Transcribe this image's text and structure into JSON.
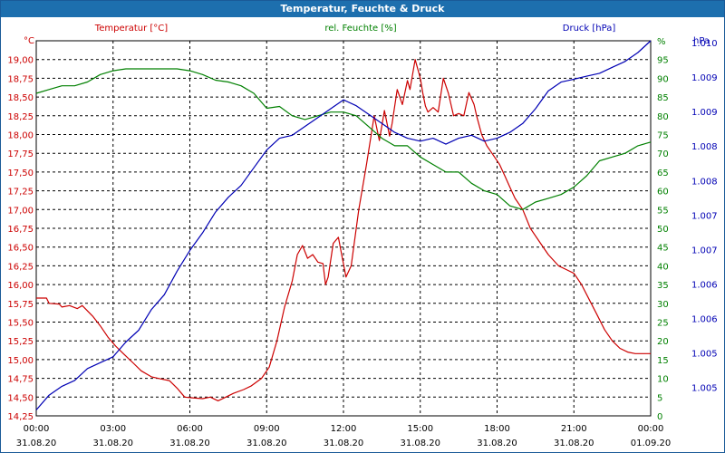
{
  "window": {
    "title": "Temperatur, Feuchte & Druck"
  },
  "colors": {
    "temperature": "#cc0000",
    "humidity": "#008000",
    "pressure": "#0000b4",
    "titlebar": "#1d6fae"
  },
  "chart_data": {
    "type": "line",
    "title": "Temperatur, Feuchte & Druck",
    "grid": true,
    "x_hours": [
      0,
      3,
      6,
      9,
      12,
      15,
      18,
      21,
      24
    ],
    "x_ticks": [
      {
        "time": "00:00",
        "date": "31.08.20"
      },
      {
        "time": "03:00",
        "date": "31.08.20"
      },
      {
        "time": "06:00",
        "date": "31.08.20"
      },
      {
        "time": "09:00",
        "date": "31.08.20"
      },
      {
        "time": "12:00",
        "date": "31.08.20"
      },
      {
        "time": "15:00",
        "date": "31.08.20"
      },
      {
        "time": "18:00",
        "date": "31.08.20"
      },
      {
        "time": "21:00",
        "date": "31.08.20"
      },
      {
        "time": "00:00",
        "date": "01.09.20"
      }
    ],
    "axes": {
      "left": {
        "unit": "°C",
        "legend": "Temperatur [°C]",
        "range": [
          14.25,
          19.25
        ],
        "ticks": [
          "14,25",
          "14,50",
          "14,75",
          "15,00",
          "15,25",
          "15,50",
          "15,75",
          "16,00",
          "16,25",
          "16,50",
          "16,75",
          "17,00",
          "17,25",
          "17,50",
          "17,75",
          "18,00",
          "18,25",
          "18,50",
          "18,75",
          "19,00"
        ]
      },
      "right1": {
        "unit": "%",
        "legend": "rel. Feuchte [%]",
        "range": [
          0,
          100
        ],
        "ticks": [
          "0",
          "5",
          "10",
          "15",
          "20",
          "25",
          "30",
          "35",
          "40",
          "45",
          "50",
          "55",
          "60",
          "65",
          "70",
          "75",
          "80",
          "85",
          "90",
          "95",
          "%"
        ]
      },
      "right2": {
        "unit": "hPa",
        "legend": "Druck [hPa]",
        "range": [
          1004.5,
          1010.85
        ],
        "ticks": [
          "1.005",
          "1.005",
          "1.006",
          "1.006",
          "1.007",
          "1.007",
          "1.008",
          "1.008",
          "1.009",
          "1.009",
          "1.010"
        ]
      }
    },
    "series": [
      {
        "name": "Temperatur",
        "axis": "left",
        "color": "#cc0000",
        "x": [
          0,
          0.4,
          0.5,
          0.9,
          1,
          1.3,
          1.6,
          1.8,
          2.2,
          2.5,
          2.8,
          3.1,
          3.4,
          3.8,
          4.1,
          4.5,
          4.9,
          5.2,
          5.5,
          5.8,
          6.1,
          6.5,
          6.8,
          7.1,
          7.4,
          7.7,
          8.1,
          8.4,
          8.8,
          9.1,
          9.4,
          9.7,
          10.0,
          10.2,
          10.4,
          10.6,
          10.8,
          11.0,
          11.2,
          11.3,
          11.4,
          11.6,
          11.8,
          11.9,
          12.1,
          12.3,
          12.6,
          12.9,
          13.2,
          13.4,
          13.6,
          13.8,
          13.9,
          14.1,
          14.3,
          14.5,
          14.6,
          14.8,
          15.0,
          15.1,
          15.2,
          15.3,
          15.5,
          15.7,
          15.9,
          16.1,
          16.3,
          16.5,
          16.7,
          16.9,
          17.1,
          17.2,
          17.4,
          17.6,
          17.8,
          18.1,
          18.3,
          18.5,
          18.7,
          19.0,
          19.3,
          19.7,
          20.0,
          20.4,
          20.7,
          21.0,
          21.3,
          21.6,
          21.9,
          22.2,
          22.5,
          22.8,
          23.1,
          23.4,
          23.7,
          24.0
        ],
        "y": [
          15.82,
          15.82,
          15.75,
          15.74,
          15.7,
          15.72,
          15.68,
          15.72,
          15.58,
          15.45,
          15.3,
          15.18,
          15.08,
          14.95,
          14.85,
          14.77,
          14.74,
          14.72,
          14.62,
          14.5,
          14.49,
          14.48,
          14.5,
          14.45,
          14.5,
          14.55,
          14.6,
          14.65,
          14.75,
          14.9,
          15.25,
          15.7,
          16.05,
          16.4,
          16.52,
          16.35,
          16.4,
          16.3,
          16.28,
          16.0,
          16.1,
          16.55,
          16.63,
          16.45,
          16.1,
          16.25,
          17.0,
          17.6,
          18.25,
          17.92,
          18.32,
          17.98,
          18.15,
          18.6,
          18.4,
          18.72,
          18.6,
          19.0,
          18.75,
          18.55,
          18.38,
          18.3,
          18.36,
          18.3,
          18.75,
          18.55,
          18.25,
          18.28,
          18.25,
          18.56,
          18.4,
          18.25,
          18.0,
          17.85,
          17.75,
          17.6,
          17.45,
          17.3,
          17.15,
          17.0,
          16.75,
          16.55,
          16.4,
          16.25,
          16.2,
          16.15,
          16.0,
          15.8,
          15.6,
          15.4,
          15.25,
          15.15,
          15.1,
          15.08,
          15.08,
          15.08
        ]
      },
      {
        "name": "rel. Feuchte",
        "axis": "right1",
        "color": "#008000",
        "x": [
          0,
          0.5,
          1,
          1.5,
          2,
          2.5,
          3,
          3.5,
          4,
          4.5,
          5,
          5.5,
          6,
          6.5,
          7,
          7.5,
          8,
          8.5,
          9,
          9.5,
          10,
          10.5,
          11,
          11.5,
          12,
          12.5,
          13,
          13.5,
          14,
          14.5,
          15,
          15.5,
          16,
          16.5,
          17,
          17.5,
          18,
          18.5,
          19,
          19.5,
          20,
          20.5,
          21,
          21.5,
          22,
          22.5,
          23,
          23.5,
          24
        ],
        "y": [
          86,
          87,
          88,
          88,
          89,
          91,
          92,
          92.5,
          92.5,
          92.5,
          92.5,
          92.5,
          92,
          91,
          89.5,
          89,
          88,
          86,
          82,
          82.5,
          80,
          79,
          80,
          81,
          81,
          80,
          77,
          74,
          72,
          72,
          69,
          67,
          65,
          65,
          62,
          60,
          59,
          56,
          55,
          57,
          58,
          59,
          61,
          64,
          68,
          69,
          70,
          72,
          73
        ]
      },
      {
        "name": "Druck",
        "axis": "right2",
        "color": "#0000b4",
        "x": [
          0,
          0.5,
          1,
          1.5,
          2,
          2.5,
          3,
          3.5,
          4,
          4.5,
          5,
          5.5,
          6,
          6.5,
          7,
          7.5,
          8,
          8.5,
          9,
          9.5,
          10,
          10.5,
          11,
          11.5,
          12,
          12.5,
          13,
          13.5,
          14,
          14.5,
          15,
          15.5,
          16,
          16.5,
          17,
          17.5,
          18,
          18.5,
          19,
          19.5,
          20,
          20.5,
          21,
          21.5,
          22,
          22.5,
          23,
          23.5,
          24
        ],
        "y": [
          1004.6,
          1004.85,
          1005.0,
          1005.1,
          1005.3,
          1005.4,
          1005.5,
          1005.75,
          1005.95,
          1006.3,
          1006.55,
          1006.95,
          1007.3,
          1007.6,
          1007.95,
          1008.2,
          1008.4,
          1008.7,
          1009.0,
          1009.2,
          1009.25,
          1009.4,
          1009.55,
          1009.7,
          1009.85,
          1009.75,
          1009.6,
          1009.45,
          1009.3,
          1009.2,
          1009.15,
          1009.2,
          1009.1,
          1009.2,
          1009.25,
          1009.15,
          1009.2,
          1009.3,
          1009.45,
          1009.7,
          1010.0,
          1010.15,
          1010.2,
          1010.25,
          1010.3,
          1010.4,
          1010.5,
          1010.65,
          1010.85
        ]
      }
    ]
  }
}
